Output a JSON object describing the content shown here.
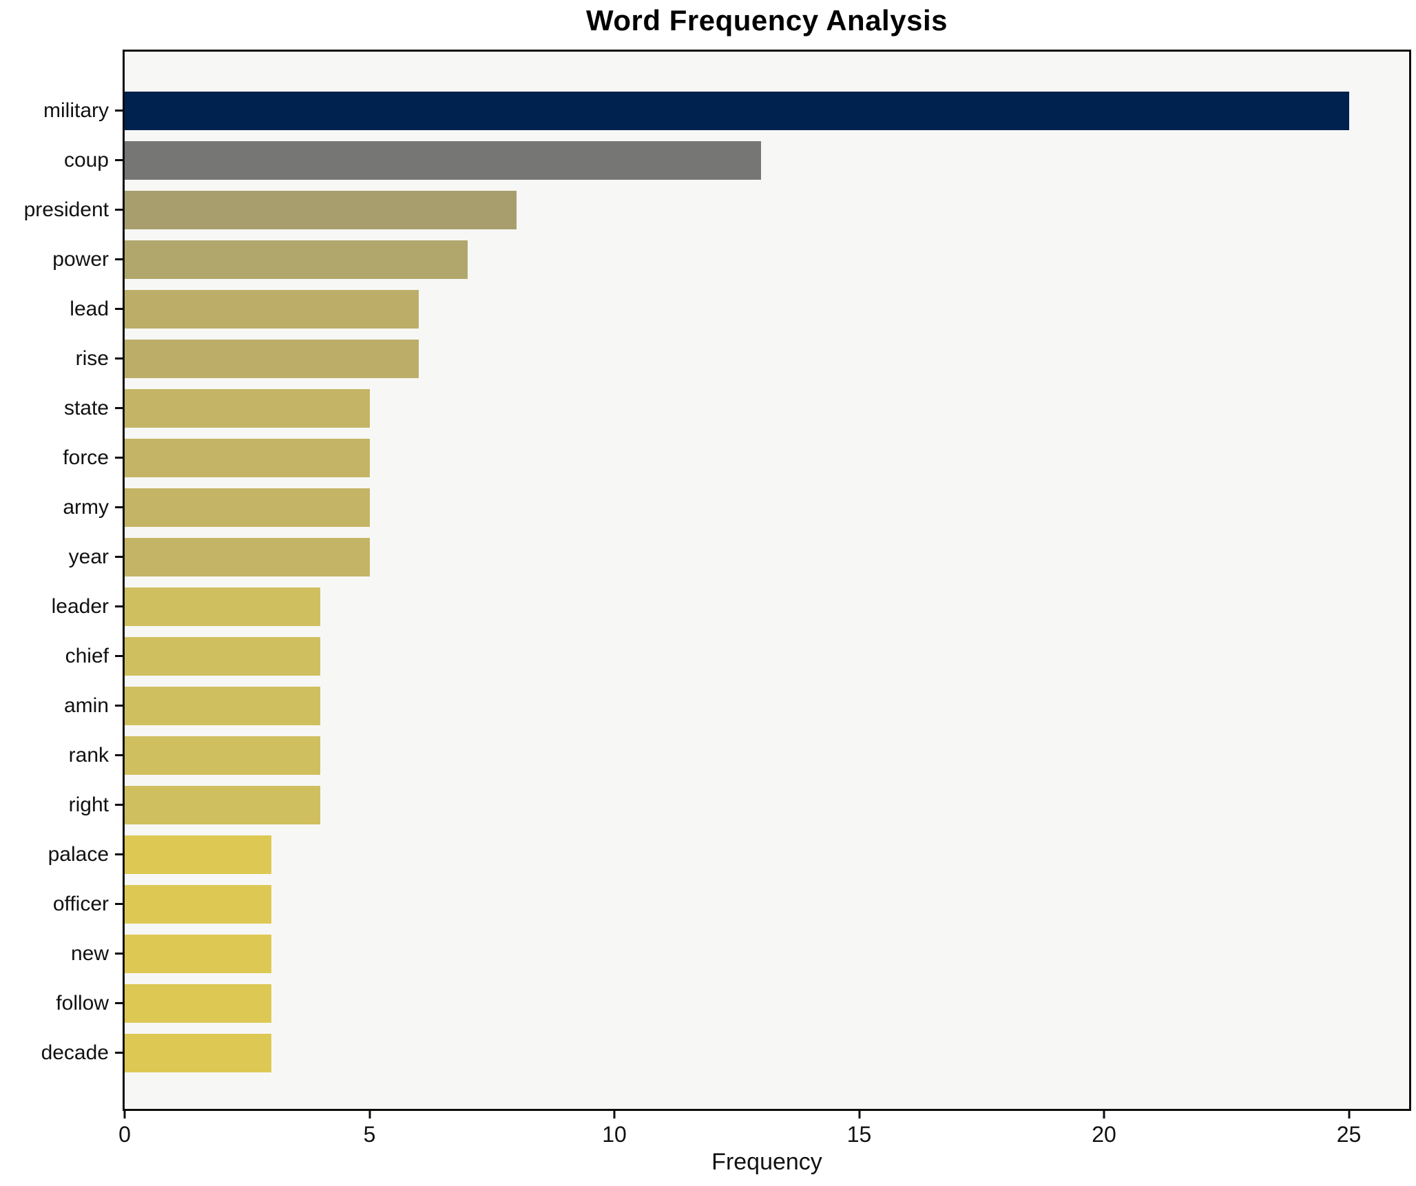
{
  "title": "Word Frequency Analysis",
  "colors": {
    "figure_background": "#ffffff",
    "plot_background": "#f7f7f5",
    "spine": "#0d0d0d",
    "text": "#111111"
  },
  "chart_data": {
    "type": "bar",
    "orientation": "horizontal",
    "title": "Word Frequency Analysis",
    "xlabel": "Frequency",
    "ylabel": "",
    "categories": [
      "military",
      "coup",
      "president",
      "power",
      "lead",
      "rise",
      "state",
      "force",
      "army",
      "year",
      "leader",
      "chief",
      "amin",
      "rank",
      "right",
      "palace",
      "officer",
      "new",
      "follow",
      "decade"
    ],
    "values": [
      25,
      13,
      8,
      7,
      6,
      6,
      5,
      5,
      5,
      5,
      4,
      4,
      4,
      4,
      4,
      3,
      3,
      3,
      3,
      3
    ],
    "bar_colors": [
      "#00224e",
      "#767775",
      "#a89e6d",
      "#b1a76c",
      "#bcae69",
      "#bcae69",
      "#c4b465",
      "#c4b465",
      "#c4b465",
      "#c4b465",
      "#d0bf5e",
      "#d0bf5e",
      "#d0bf5e",
      "#d0bf5e",
      "#d0bf5e",
      "#ddc853",
      "#ddc853",
      "#ddc853",
      "#ddc853",
      "#ddc853"
    ],
    "xlim": [
      0,
      26.23
    ],
    "x_ticks": [
      0,
      5,
      10,
      15,
      20,
      25
    ],
    "grid": false,
    "legend": false,
    "bar_order": "descending"
  }
}
